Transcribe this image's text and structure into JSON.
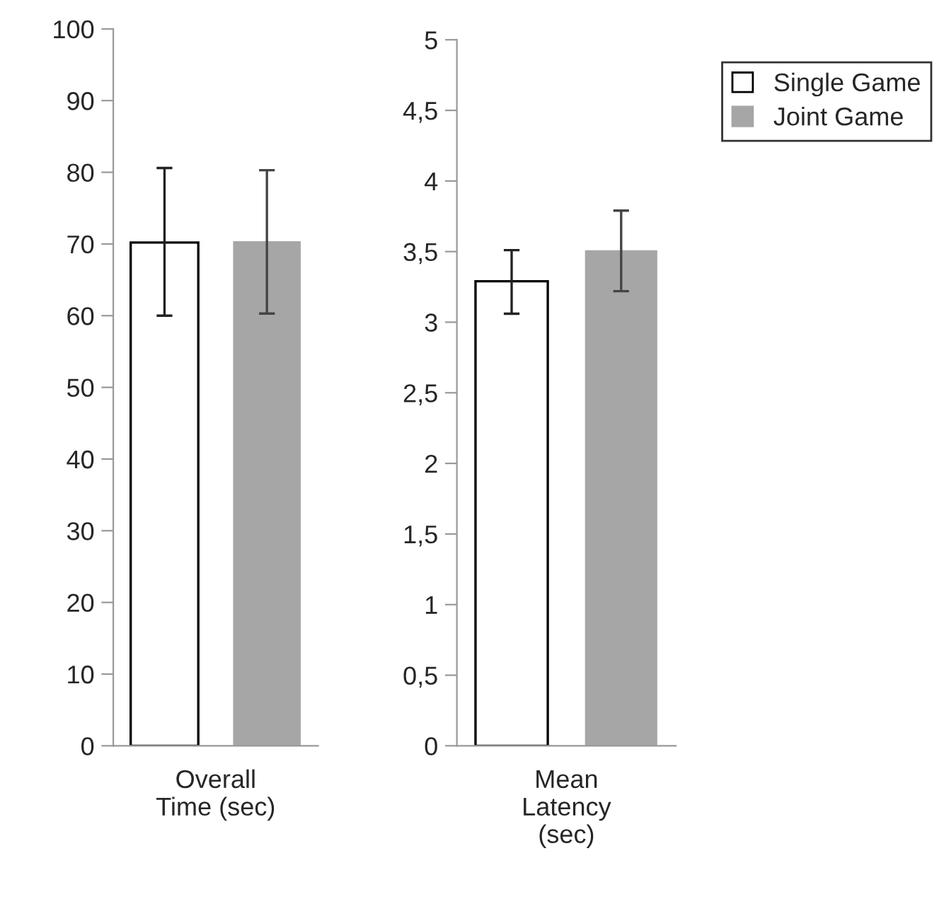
{
  "chart_data": [
    {
      "type": "bar",
      "categories": [
        "Overall\nTime (sec)"
      ],
      "ylim": [
        0,
        100
      ],
      "yticks": [
        0,
        10,
        20,
        30,
        40,
        50,
        60,
        70,
        80,
        90,
        100
      ],
      "grid": false,
      "legend": false,
      "series": [
        {
          "color": "#ffffff",
          "values": [
            70.2
          ],
          "errors": [
            [
              60.0,
              80.6
            ]
          ]
        },
        {
          "color": "#a6a6a6",
          "values": [
            70.4
          ],
          "errors": [
            [
              60.3,
              80.3
            ]
          ]
        }
      ]
    },
    {
      "type": "bar",
      "categories": [
        "Mean\nLatency\n(sec)"
      ],
      "ylim": [
        0,
        5
      ],
      "yticks": [
        0,
        {
          "value": 0.5,
          "label": "0,5"
        },
        1,
        {
          "value": 1.5,
          "label": "1,5"
        },
        2,
        {
          "value": 2.5,
          "label": "2,5"
        },
        3,
        {
          "value": 3.5,
          "label": "3,5"
        },
        4,
        {
          "value": 4.5,
          "label": "4,5"
        },
        5
      ],
      "grid": false,
      "legend": "top right",
      "series": [
        {
          "name": "Single Game",
          "color": "#ffffff",
          "values": [
            3.29
          ],
          "errors": [
            [
              3.06,
              3.51
            ]
          ]
        },
        {
          "name": "Joint Game",
          "color": "#a6a6a6",
          "values": [
            3.51
          ],
          "errors": [
            [
              3.22,
              3.79
            ]
          ]
        }
      ]
    }
  ]
}
